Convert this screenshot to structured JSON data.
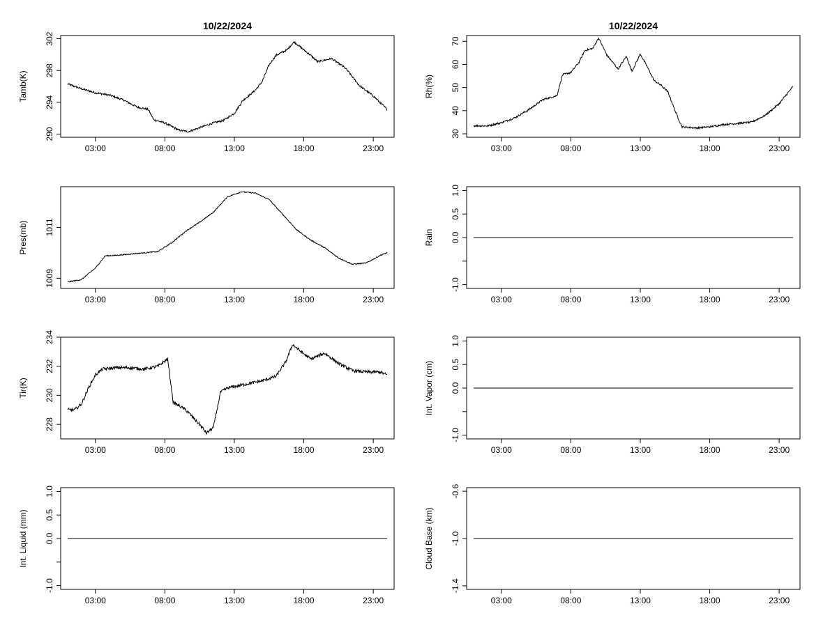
{
  "chart_data": [
    {
      "id": "tamb",
      "type": "line",
      "title": "10/22/2024",
      "ylabel": "Tamb(K)",
      "xlim": [
        0.5,
        24.5
      ],
      "ylim": [
        289.6,
        302.4
      ],
      "xticks": [
        3,
        8,
        13,
        18,
        23
      ],
      "xtick_labels": [
        "03:00",
        "08:00",
        "13:00",
        "18:00",
        "23:00"
      ],
      "yticks": [
        290,
        294,
        298,
        302
      ],
      "ytick_labels": [
        "290",
        "294",
        "298",
        "302"
      ],
      "noise": 0.25,
      "x": [
        1,
        2,
        3,
        4,
        5,
        6,
        6.8,
        7.2,
        8,
        9,
        9.7,
        10.5,
        11.5,
        12.2,
        13,
        13.6,
        14.5,
        15,
        15.5,
        16,
        16.8,
        17.3,
        18,
        18.5,
        19,
        20,
        21,
        22,
        23,
        24
      ],
      "y": [
        296.3,
        295.7,
        295.2,
        294.9,
        294.3,
        293.4,
        293.1,
        291.8,
        291.4,
        290.5,
        290.3,
        290.8,
        291.4,
        291.7,
        292.6,
        294.2,
        295.5,
        296.6,
        298.7,
        299.9,
        300.6,
        301.6,
        300.6,
        299.9,
        299.1,
        299.5,
        298.3,
        296.1,
        294.8,
        293.1
      ]
    },
    {
      "id": "rh",
      "type": "line",
      "title": "10/22/2024",
      "ylabel": "Rh(%)",
      "xlim": [
        0.5,
        24.5
      ],
      "ylim": [
        28.5,
        72.5
      ],
      "xticks": [
        3,
        8,
        13,
        18,
        23
      ],
      "xtick_labels": [
        "03:00",
        "08:00",
        "13:00",
        "18:00",
        "23:00"
      ],
      "yticks": [
        30,
        40,
        50,
        60,
        70
      ],
      "ytick_labels": [
        "30",
        "40",
        "50",
        "60",
        "70"
      ],
      "noise": 0.8,
      "x": [
        1,
        2,
        3,
        4,
        5,
        6,
        7,
        7.4,
        8,
        8.6,
        9,
        9.6,
        10,
        10.6,
        11,
        11.4,
        12,
        12.4,
        13,
        13.5,
        14,
        14.5,
        15,
        15.5,
        16,
        17,
        18,
        19,
        20,
        21,
        22,
        23,
        24
      ],
      "y": [
        33.5,
        33.4,
        34.8,
        37.0,
        40.5,
        44.8,
        46.5,
        55.5,
        56.5,
        61.0,
        66.0,
        67.0,
        71.5,
        64.0,
        61.0,
        58.0,
        63.5,
        57.0,
        64.5,
        59.0,
        53.0,
        51.0,
        48.0,
        40.0,
        33.0,
        32.5,
        33.0,
        34.0,
        34.5,
        35.0,
        38.0,
        43.0,
        50.5
      ]
    },
    {
      "id": "pres",
      "type": "line",
      "title": "",
      "ylabel": "Pres(mb)",
      "xlim": [
        0.5,
        24.5
      ],
      "ylim": [
        1008.6,
        1012.6
      ],
      "xticks": [
        3,
        8,
        13,
        18,
        23
      ],
      "xtick_labels": [
        "03:00",
        "08:00",
        "13:00",
        "18:00",
        "23:00"
      ],
      "yticks": [
        1009,
        1011
      ],
      "ytick_labels": [
        "1009",
        "1011"
      ],
      "noise": 0.04,
      "x": [
        1,
        2,
        3,
        3.7,
        4.5,
        5.5,
        6.5,
        7.5,
        8.5,
        9.5,
        10.5,
        11.5,
        12.5,
        13.5,
        14.5,
        15.5,
        16.5,
        17.5,
        18.5,
        19.5,
        20.5,
        21.5,
        22.5,
        23.5,
        24
      ],
      "y": [
        1008.85,
        1008.95,
        1009.4,
        1009.88,
        1009.9,
        1009.95,
        1010.0,
        1010.05,
        1010.4,
        1010.85,
        1011.2,
        1011.6,
        1012.2,
        1012.4,
        1012.35,
        1012.1,
        1011.5,
        1010.9,
        1010.5,
        1010.2,
        1009.8,
        1009.55,
        1009.6,
        1009.9,
        1010.0
      ]
    },
    {
      "id": "rain",
      "type": "line",
      "title": "",
      "ylabel": "Rain",
      "xlim": [
        0.5,
        24.5
      ],
      "ylim": [
        -1.08,
        1.08
      ],
      "xticks": [
        3,
        8,
        13,
        18,
        23
      ],
      "xtick_labels": [
        "03:00",
        "08:00",
        "13:00",
        "18:00",
        "23:00"
      ],
      "yticks": [
        -1.0,
        -0.5,
        0.0,
        0.5,
        1.0
      ],
      "ytick_labels": [
        "-1.0",
        "",
        "0.0",
        "0.5",
        "1.0"
      ],
      "noise": 0,
      "x": [
        1,
        24
      ],
      "y": [
        0.0,
        0.0
      ]
    },
    {
      "id": "tir",
      "type": "line",
      "title": "",
      "ylabel": "Tir(K)",
      "xlim": [
        0.5,
        24.5
      ],
      "ylim": [
        227.0,
        234.0
      ],
      "xticks": [
        3,
        8,
        13,
        18,
        23
      ],
      "xtick_labels": [
        "03:00",
        "08:00",
        "13:00",
        "18:00",
        "23:00"
      ],
      "yticks": [
        228,
        230,
        232,
        234
      ],
      "ytick_labels": [
        "228",
        "230",
        "232",
        "234"
      ],
      "noise": 0.22,
      "x": [
        1,
        1.5,
        2,
        2.5,
        3,
        3.5,
        4.5,
        5.5,
        6.5,
        7.5,
        8.2,
        8.6,
        9,
        9.5,
        10,
        10.5,
        11,
        11.5,
        12,
        12.5,
        13,
        14,
        15,
        16,
        16.7,
        17.2,
        17.8,
        18.5,
        19.5,
        20.5,
        21.5,
        22.5,
        23.5,
        24
      ],
      "y": [
        229.0,
        229.0,
        229.4,
        230.5,
        231.4,
        231.8,
        231.9,
        231.9,
        231.8,
        232.0,
        232.5,
        229.5,
        229.3,
        229.0,
        228.5,
        228.0,
        227.4,
        227.8,
        230.2,
        230.5,
        230.6,
        230.8,
        231.0,
        231.3,
        232.3,
        233.5,
        233.0,
        232.5,
        232.9,
        232.2,
        231.7,
        231.6,
        231.6,
        231.4
      ]
    },
    {
      "id": "vapor",
      "type": "line",
      "title": "",
      "ylabel": "Int. Vapor (cm)",
      "xlim": [
        0.5,
        24.5
      ],
      "ylim": [
        -1.08,
        1.08
      ],
      "xticks": [
        3,
        8,
        13,
        18,
        23
      ],
      "xtick_labels": [
        "03:00",
        "08:00",
        "13:00",
        "18:00",
        "23:00"
      ],
      "yticks": [
        -1.0,
        -0.5,
        0.0,
        0.5,
        1.0
      ],
      "ytick_labels": [
        "-1.0",
        "",
        "0.0",
        "0.5",
        "1.0"
      ],
      "noise": 0,
      "x": [
        1,
        24
      ],
      "y": [
        0.0,
        0.0
      ]
    },
    {
      "id": "liquid",
      "type": "line",
      "title": "",
      "ylabel": "Int. Liquid (mm)",
      "xlim": [
        0.5,
        24.5
      ],
      "ylim": [
        -1.08,
        1.08
      ],
      "xticks": [
        3,
        8,
        13,
        18,
        23
      ],
      "xtick_labels": [
        "03:00",
        "08:00",
        "13:00",
        "18:00",
        "23:00"
      ],
      "yticks": [
        -1.0,
        -0.5,
        0.0,
        0.5,
        1.0
      ],
      "ytick_labels": [
        "-1.0",
        "",
        "0.0",
        "0.5",
        "1.0"
      ],
      "noise": 0,
      "x": [
        1,
        24
      ],
      "y": [
        0.0,
        0.0
      ]
    },
    {
      "id": "cloudbase",
      "type": "line",
      "title": "",
      "ylabel": "Cloud Base (km)",
      "xlim": [
        0.5,
        24.5
      ],
      "ylim": [
        -1.43,
        -0.57
      ],
      "xticks": [
        3,
        8,
        13,
        18,
        23
      ],
      "xtick_labels": [
        "03:00",
        "08:00",
        "13:00",
        "18:00",
        "23:00"
      ],
      "yticks": [
        -1.4,
        -1.0,
        -0.6
      ],
      "ytick_labels": [
        "-1.4",
        "-1.0",
        "-0.6"
      ],
      "noise": 0,
      "x": [
        1,
        24
      ],
      "y": [
        -1.0,
        -1.0
      ]
    }
  ]
}
